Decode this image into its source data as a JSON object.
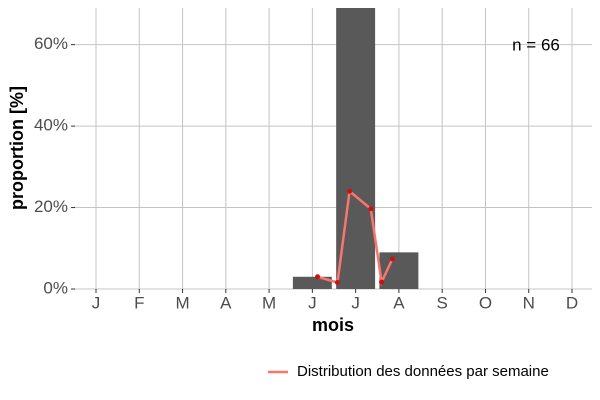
{
  "chart_data": {
    "type": "bar",
    "xlabel": "mois",
    "ylabel": "proportion [%]",
    "annotation": "n = 66",
    "categories": [
      "J",
      "F",
      "M",
      "A",
      "M",
      "J",
      "J",
      "A",
      "S",
      "O",
      "N",
      "D"
    ],
    "values": [
      0,
      0,
      0,
      0,
      0,
      3,
      70,
      9,
      0,
      0,
      0,
      0
    ],
    "color": "#595959",
    "ylim": [
      0,
      69
    ],
    "yticks": [
      {
        "value": 0,
        "label": "0%"
      },
      {
        "value": 20,
        "label": "20%"
      },
      {
        "value": 40,
        "label": "40%"
      },
      {
        "value": 60,
        "label": "60%"
      }
    ],
    "grid": true,
    "legend": "bottom-right",
    "overlay": {
      "type": "line",
      "name": "Distribution des données par semaine",
      "color": "#f8766d",
      "point_color": "#cc1111",
      "x": [
        5.12,
        5.58,
        5.86,
        6.35,
        6.6,
        6.85
      ],
      "values": [
        3,
        1.6,
        24,
        19.7,
        1.7,
        7.4
      ]
    }
  }
}
